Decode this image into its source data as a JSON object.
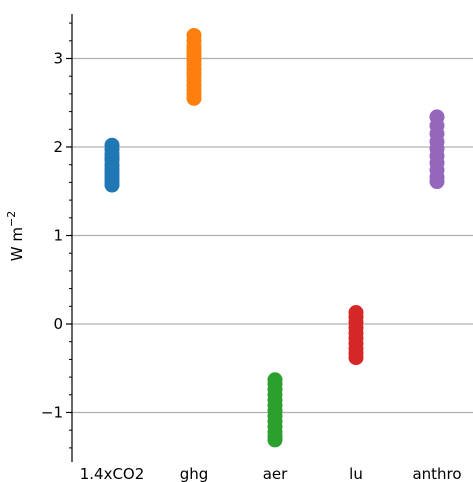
{
  "chart_data": {
    "type": "scatter",
    "ylabel": "W m",
    "ylabel_superscript": "−2",
    "categories": [
      "1.4xCO2",
      "ghg",
      "aer",
      "lu",
      "anthro"
    ],
    "ylim": [
      -1.55,
      3.55
    ],
    "yticks": [
      -1,
      0,
      1,
      2,
      3
    ],
    "ytick_labels": [
      "−1",
      "0",
      "1",
      "2",
      "3"
    ],
    "grid": "horizontal",
    "series": [
      {
        "category": "1.4xCO2",
        "color": "#1f77b4",
        "values": [
          2.02,
          1.97,
          1.92,
          1.88,
          1.85,
          1.8,
          1.76,
          1.72,
          1.68,
          1.64,
          1.6,
          1.57
        ]
      },
      {
        "category": "ghg",
        "color": "#ff7f0e",
        "values": [
          3.26,
          3.2,
          3.14,
          3.1,
          3.06,
          3.02,
          2.98,
          2.93,
          2.88,
          2.84,
          2.8,
          2.75,
          2.7,
          2.65,
          2.6,
          2.55
        ]
      },
      {
        "category": "aer",
        "color": "#2ca02c",
        "values": [
          -0.63,
          -0.68,
          -0.74,
          -0.8,
          -0.86,
          -0.92,
          -0.98,
          -1.04,
          -1.1,
          -1.16,
          -1.22,
          -1.27,
          -1.31
        ]
      },
      {
        "category": "lu",
        "color": "#d62728",
        "values": [
          0.13,
          0.08,
          0.02,
          -0.04,
          -0.1,
          -0.16,
          -0.22,
          -0.28,
          -0.33,
          -0.38
        ]
      },
      {
        "category": "anthro",
        "color": "#9467bd",
        "values": [
          2.34,
          2.24,
          2.15,
          2.06,
          1.98,
          1.9,
          1.82,
          1.74,
          1.66,
          1.61
        ]
      }
    ]
  }
}
